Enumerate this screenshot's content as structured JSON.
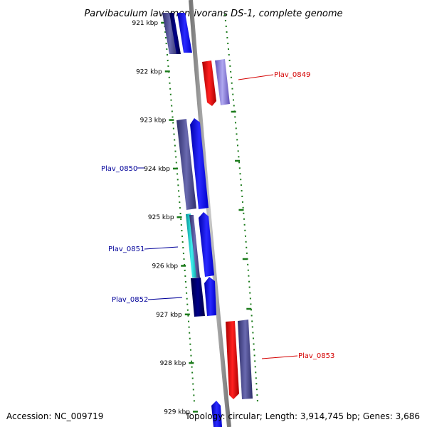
{
  "title": "Parvibaculum lavamentivorans DS-1, complete genome",
  "footer": {
    "accession": "Accession: NC_009719",
    "topology": "Topology: circular; Length: 3,914,745 bp; Genes: 3,686"
  },
  "colors": {
    "forward": "#ff0000",
    "reverse_blue": "#0000ff",
    "dark_navy": "#000066",
    "slate": "#4a4a8c",
    "light_purple": "#8878d8",
    "cyan": "#00c8c8",
    "backbone": "#888888",
    "tick": "#1a7a1a"
  },
  "ticks": [
    {
      "label": "921 kbp",
      "kbp": 921
    },
    {
      "label": "922 kbp",
      "kbp": 922
    },
    {
      "label": "923 kbp",
      "kbp": 923
    },
    {
      "label": "924 kbp",
      "kbp": 924
    },
    {
      "label": "925 kbp",
      "kbp": 925
    },
    {
      "label": "926 kbp",
      "kbp": 926
    },
    {
      "label": "927 kbp",
      "kbp": 927
    },
    {
      "label": "928 kbp",
      "kbp": 928
    },
    {
      "label": "929 kbp",
      "kbp": 929
    }
  ],
  "genes": [
    {
      "name": "Plav_0849",
      "color": "#d40000"
    },
    {
      "name": "Plav_0850",
      "color": "#000099"
    },
    {
      "name": "Plav_0851",
      "color": "#000099"
    },
    {
      "name": "Plav_0852",
      "color": "#000099"
    },
    {
      "name": "Plav_0853",
      "color": "#d40000"
    }
  ]
}
